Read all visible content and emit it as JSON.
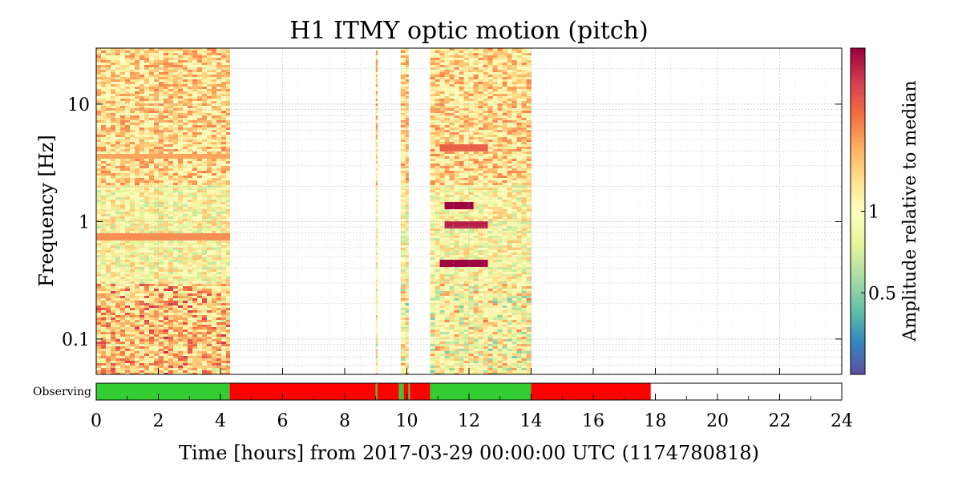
{
  "chart_data": {
    "type": "heatmap",
    "title": "H1 ITMY optic motion (pitch)",
    "xlabel": "Time [hours] from 2017-03-29 00:00:00 UTC (1174780818)",
    "ylabel": "Frequency [Hz]",
    "xlim": [
      0,
      24
    ],
    "ylim": [
      0.05,
      30
    ],
    "yscale": "log",
    "x_ticks": [
      0,
      2,
      4,
      6,
      8,
      10,
      12,
      14,
      16,
      18,
      20,
      22,
      24
    ],
    "y_ticks": [
      {
        "value": 0.1,
        "label": "0.1"
      },
      {
        "value": 1,
        "label": "1"
      },
      {
        "value": 10,
        "label": "10"
      }
    ],
    "grid": true,
    "colorbar": {
      "label": "Amplitude relative to median",
      "scale": "log",
      "range": [
        0.25,
        4
      ],
      "ticks": [
        {
          "value": 0.5,
          "label": "0.5"
        },
        {
          "value": 1,
          "label": "1"
        }
      ],
      "colormap": "Spectral_r"
    },
    "data_segments_hours": [
      [
        0,
        4.3
      ],
      [
        9.0,
        9.05
      ],
      [
        9.8,
        10.05
      ],
      [
        10.75,
        14.0
      ]
    ],
    "features": [
      {
        "name": "broadband low-frequency excess",
        "x_range": [
          0,
          4.3
        ],
        "y_range": [
          0.05,
          0.3
        ],
        "level": 1.5
      },
      {
        "name": "line",
        "x_range": [
          0,
          4.3
        ],
        "y": 3.6,
        "level": 1.8
      },
      {
        "name": "line",
        "x_range": [
          0,
          4.3
        ],
        "y": 0.75,
        "level": 2.0
      },
      {
        "name": "line",
        "x_range": [
          11.0,
          12.5
        ],
        "y": 0.45,
        "level": 4.0
      },
      {
        "name": "line",
        "x_range": [
          11.1,
          12.0
        ],
        "y": 1.35,
        "level": 4.0
      },
      {
        "name": "line",
        "x_range": [
          11.1,
          12.5
        ],
        "y": 0.92,
        "level": 3.5
      },
      {
        "name": "line",
        "x_range": [
          11.0,
          12.6
        ],
        "y": 4.2,
        "level": 2.5
      }
    ],
    "state_bar": {
      "label": "Observing",
      "segments": [
        {
          "start": 0,
          "end": 4.3,
          "state": "observing",
          "color": "#33cc33"
        },
        {
          "start": 4.3,
          "end": 9.0,
          "state": "not observing",
          "color": "#ff0000"
        },
        {
          "start": 9.0,
          "end": 9.05,
          "state": "observing",
          "color": "#33cc33"
        },
        {
          "start": 9.05,
          "end": 9.75,
          "state": "not observing",
          "color": "#ff0000"
        },
        {
          "start": 9.75,
          "end": 9.9,
          "state": "observing",
          "color": "#33cc33"
        },
        {
          "start": 9.9,
          "end": 10.05,
          "state": "not observing",
          "color": "#ff0000"
        },
        {
          "start": 10.05,
          "end": 10.1,
          "state": "observing",
          "color": "#33cc33"
        },
        {
          "start": 10.1,
          "end": 10.75,
          "state": "not observing",
          "color": "#ff0000"
        },
        {
          "start": 10.75,
          "end": 14.0,
          "state": "observing",
          "color": "#33cc33"
        },
        {
          "start": 14.0,
          "end": 17.85,
          "state": "not observing",
          "color": "#ff0000"
        }
      ]
    }
  }
}
